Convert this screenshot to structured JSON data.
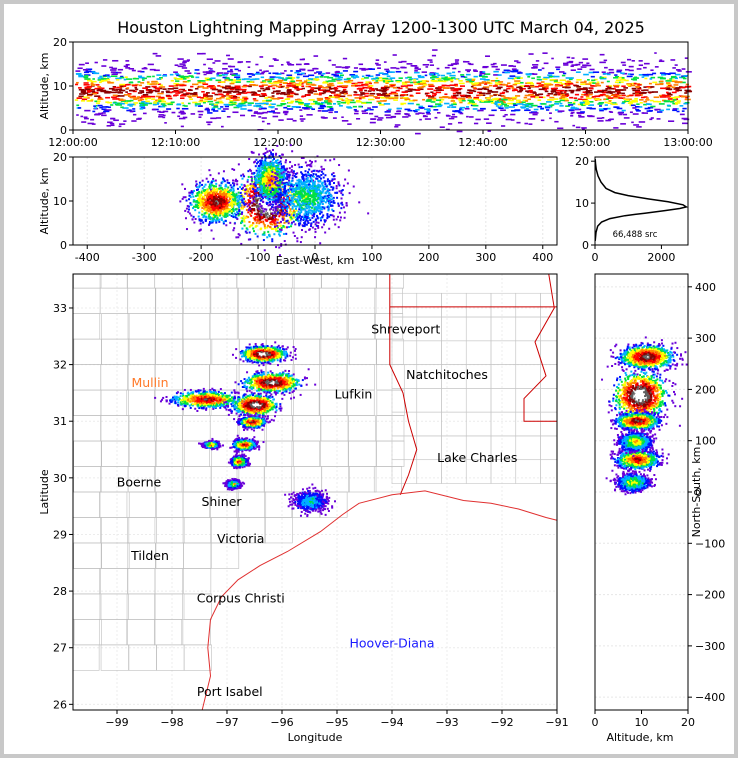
{
  "title": "Houston Lightning Mapping Array 1200-1300 UTC March 04, 2025",
  "colors": {
    "background": "#ffffff",
    "frame": "#c8c8c8",
    "state_border": "#cc0000",
    "county_border": "#b4b4b4",
    "coast": "#e03030",
    "density_scale": [
      "#6a00d8",
      "#0010ff",
      "#00b0ff",
      "#00e040",
      "#ffff00",
      "#ff8000",
      "#ff0000",
      "#8a0000",
      "#606060",
      "#ffffff"
    ]
  },
  "chart_data": [
    {
      "id": "altitude-time",
      "type": "heatmap",
      "ylabel": "Altitude, km",
      "ylim": [
        0,
        20
      ],
      "yticks": [
        "0",
        "10",
        "20"
      ],
      "xticks": [
        "12:00:00",
        "12:10:00",
        "12:20:00",
        "12:30:00",
        "12:40:00",
        "12:50:00",
        "13:00:00"
      ],
      "xlim": [
        "12:00:00",
        "13:00:00"
      ],
      "band_center_km": 9,
      "band_halfwidth_km": 5
    },
    {
      "id": "altitude-ew",
      "type": "heatmap",
      "xlabel": "East-West, km",
      "ylabel": "Altitude, km",
      "xlim": [
        -425,
        425
      ],
      "ylim": [
        0,
        20
      ],
      "xticks": [
        "-400",
        "-300",
        "-200",
        "-100",
        "0",
        "100",
        "200",
        "300",
        "400"
      ],
      "yticks": [
        "0",
        "10",
        "20"
      ],
      "clusters": [
        {
          "x": -85,
          "z": 9.5,
          "rx": 55,
          "rz": 6.5,
          "peak": 1.0
        },
        {
          "x": -175,
          "z": 10,
          "rx": 40,
          "rz": 4,
          "peak": 0.8
        },
        {
          "x": -80,
          "z": 15,
          "rx": 25,
          "rz": 5,
          "peak": 0.55
        },
        {
          "x": -15,
          "z": 11,
          "rx": 55,
          "rz": 6,
          "peak": 0.35
        }
      ]
    },
    {
      "id": "altitude-histogram",
      "type": "line",
      "annotation": "66,488 src",
      "xlim": [
        0,
        2800
      ],
      "ylim": [
        0,
        21
      ],
      "xticks": [
        "0",
        "2000"
      ],
      "yticks": [
        "0",
        "10",
        "20"
      ],
      "points": [
        [
          5,
          1
        ],
        [
          30,
          3
        ],
        [
          80,
          4.5
        ],
        [
          200,
          5.5
        ],
        [
          450,
          6.3
        ],
        [
          900,
          7
        ],
        [
          1500,
          7.6
        ],
        [
          2100,
          8.2
        ],
        [
          2550,
          8.7
        ],
        [
          2750,
          9.1
        ],
        [
          2650,
          9.6
        ],
        [
          2200,
          10.3
        ],
        [
          1600,
          11
        ],
        [
          1000,
          11.8
        ],
        [
          600,
          12.5
        ],
        [
          330,
          13.5
        ],
        [
          180,
          15
        ],
        [
          90,
          16.5
        ],
        [
          40,
          18
        ],
        [
          15,
          19.5
        ],
        [
          5,
          20.5
        ]
      ]
    },
    {
      "id": "plan-map",
      "type": "heatmap",
      "xlabel": "Longitude",
      "ylabel": "Latitude",
      "xlim": [
        -99.8,
        -91
      ],
      "ylim": [
        25.9,
        33.6
      ],
      "xticks": [
        "−99",
        "−98",
        "−97",
        "−96",
        "−95",
        "−94",
        "−93",
        "−92",
        "−91"
      ],
      "yticks": [
        "26",
        "27",
        "28",
        "29",
        "30",
        "31",
        "32",
        "33"
      ],
      "storm_cells": [
        {
          "lon": -96.35,
          "lat": 32.2,
          "rx": 0.35,
          "ry": 0.12,
          "peak": 0.95
        },
        {
          "lon": -96.2,
          "lat": 31.7,
          "rx": 0.45,
          "ry": 0.15,
          "peak": 0.9
        },
        {
          "lon": -97.4,
          "lat": 31.4,
          "rx": 0.55,
          "ry": 0.13,
          "peak": 0.75
        },
        {
          "lon": -96.5,
          "lat": 31.3,
          "rx": 0.35,
          "ry": 0.16,
          "peak": 0.95
        },
        {
          "lon": -96.55,
          "lat": 31.0,
          "rx": 0.2,
          "ry": 0.08,
          "peak": 0.8
        },
        {
          "lon": -96.7,
          "lat": 30.6,
          "rx": 0.18,
          "ry": 0.08,
          "peak": 0.7
        },
        {
          "lon": -96.8,
          "lat": 30.3,
          "rx": 0.12,
          "ry": 0.08,
          "peak": 0.65
        },
        {
          "lon": -97.3,
          "lat": 30.6,
          "rx": 0.12,
          "ry": 0.05,
          "peak": 0.55
        },
        {
          "lon": -96.9,
          "lat": 29.9,
          "rx": 0.1,
          "ry": 0.06,
          "peak": 0.5
        },
        {
          "lon": -95.5,
          "lat": 29.6,
          "rx": 0.25,
          "ry": 0.15,
          "peak": 0.3
        }
      ],
      "cities": [
        {
          "name": "Shreveport",
          "lon": -93.75,
          "lat": 32.55,
          "color": "#000000"
        },
        {
          "name": "Natchitoches",
          "lon": -93.0,
          "lat": 31.75,
          "color": "#000000"
        },
        {
          "name": "Mullin",
          "lon": -98.4,
          "lat": 31.6,
          "color": "#ff7a2a"
        },
        {
          "name": "Lufkin",
          "lon": -94.7,
          "lat": 31.4,
          "color": "#000000"
        },
        {
          "name": "Lake Charles",
          "lon": -92.45,
          "lat": 30.28,
          "color": "#000000"
        },
        {
          "name": "Boerne",
          "lon": -98.6,
          "lat": 29.85,
          "color": "#000000"
        },
        {
          "name": "Shiner",
          "lon": -97.1,
          "lat": 29.5,
          "color": "#000000"
        },
        {
          "name": "Victoria",
          "lon": -96.75,
          "lat": 28.85,
          "color": "#000000"
        },
        {
          "name": "Tilden",
          "lon": -98.4,
          "lat": 28.55,
          "color": "#000000"
        },
        {
          "name": "Corpus Christi",
          "lon": -96.75,
          "lat": 27.8,
          "color": "#000000"
        },
        {
          "name": "Hoover-Diana",
          "lon": -94.0,
          "lat": 27.0,
          "color": "#1a1aff"
        },
        {
          "name": "Port Isabel",
          "lon": -96.95,
          "lat": 26.15,
          "color": "#000000"
        }
      ]
    },
    {
      "id": "ns-altitude",
      "type": "heatmap",
      "xlabel": "Altitude, km",
      "ylabel": "North-South, km",
      "xlim": [
        0,
        20
      ],
      "ylim": [
        -425,
        425
      ],
      "xticks": [
        "0",
        "10",
        "20"
      ],
      "yticks": [
        "−400",
        "−300",
        "−200",
        "−100",
        "0",
        "100",
        "200",
        "300",
        "400"
      ],
      "clusters": [
        {
          "z": 9.5,
          "y": 190,
          "rz": 5,
          "ry": 40,
          "peak": 1.0
        },
        {
          "z": 11,
          "y": 265,
          "rz": 5,
          "ry": 20,
          "peak": 0.85
        },
        {
          "z": 9,
          "y": 140,
          "rz": 4,
          "ry": 14,
          "peak": 0.8
        },
        {
          "z": 9,
          "y": 65,
          "rz": 4,
          "ry": 16,
          "peak": 0.7
        },
        {
          "z": 8.5,
          "y": 100,
          "rz": 3,
          "ry": 15,
          "peak": 0.5
        },
        {
          "z": 8,
          "y": 20,
          "rz": 3,
          "ry": 15,
          "peak": 0.45
        }
      ]
    }
  ]
}
